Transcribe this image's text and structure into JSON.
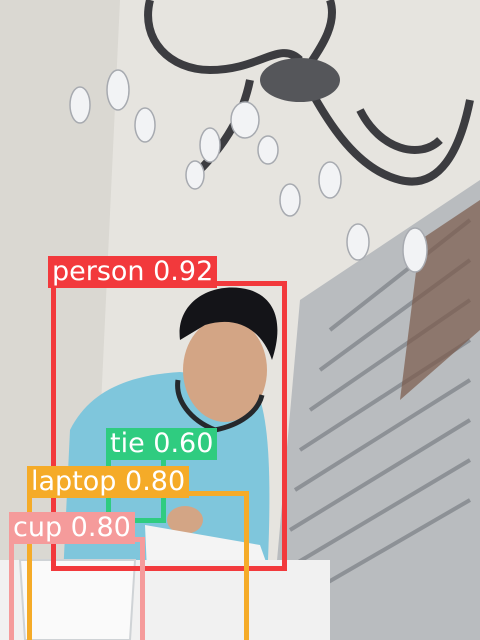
{
  "scene": {
    "description_icons": [
      "chandelier-icon",
      "window-blinds-icon",
      "person-icon",
      "laptop-icon",
      "cup-icon"
    ]
  },
  "detections": [
    {
      "label": "person 0.92",
      "color": "#f2393c"
    },
    {
      "label": "tie 0.60",
      "color": "#2fcc80"
    },
    {
      "label": "laptop 0.80",
      "color": "#f5ab28"
    },
    {
      "label": "cup 0.80",
      "color": "#f59b9b"
    }
  ]
}
